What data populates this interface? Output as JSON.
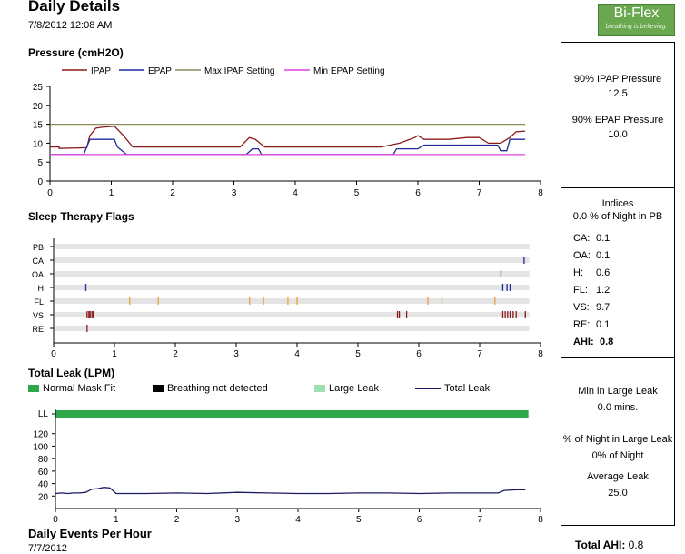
{
  "header": {
    "title": "Daily Details",
    "datetime": "7/8/2012 12:08 AM",
    "logo_text": "Bi-Flex",
    "logo_tagline": "breathing is believing."
  },
  "footer": {
    "title": "Daily Events Per Hour",
    "date": "7/7/2012",
    "total_ahi_label": "Total AHI:",
    "total_ahi_value": "0.8"
  },
  "pressure_stats": {
    "ipap_label": "90% IPAP Pressure",
    "ipap_value": "12.5",
    "epap_label": "90% EPAP Pressure",
    "epap_value": "10.0"
  },
  "indices": {
    "title": "Indices",
    "pb_line": "0.0 % of Night in PB",
    "rows": [
      {
        "label": "CA:",
        "value": "0.1"
      },
      {
        "label": "OA:",
        "value": "0.1"
      },
      {
        "label": "H:",
        "value": "0.6"
      },
      {
        "label": "FL:",
        "value": "1.2"
      },
      {
        "label": "VS:",
        "value": "9.7"
      },
      {
        "label": "RE:",
        "value": "0.1"
      }
    ],
    "ahi_label": "AHI:",
    "ahi_value": "0.8"
  },
  "leak_stats": {
    "min_label": "Min in Large Leak",
    "min_value": "0.0 mins.",
    "pct_label": "% of Night in Large Leak",
    "pct_value": "0% of Night",
    "avg_label": "Average Leak",
    "avg_value": "25.0"
  },
  "chart_data": [
    {
      "type": "line",
      "title": "Pressure (cmH2O)",
      "xlim": [
        0,
        8
      ],
      "ylim": [
        0,
        25
      ],
      "xticks": [
        0,
        1,
        2,
        3,
        4,
        5,
        6,
        7,
        8
      ],
      "yticks": [
        0,
        5,
        10,
        15,
        20,
        25
      ],
      "legend_placement": "top",
      "series": [
        {
          "name": "IPAP",
          "color": "#8b1a1a",
          "x": [
            0,
            0.15,
            0.15,
            0.6,
            0.65,
            0.75,
            0.85,
            1.05,
            1.2,
            1.35,
            1.6,
            2.0,
            2.4,
            2.8,
            3.1,
            3.25,
            3.35,
            3.5,
            3.8,
            4.2,
            4.6,
            5.0,
            5.4,
            5.7,
            5.95,
            6.0,
            6.1,
            6.3,
            6.5,
            6.8,
            7.0,
            7.15,
            7.35,
            7.5,
            7.6,
            7.75
          ],
          "values": [
            9,
            9,
            8.6,
            8.8,
            12,
            14,
            14.2,
            14.5,
            12,
            9,
            9,
            9,
            9,
            9,
            9,
            11.5,
            11,
            9,
            9,
            9,
            9,
            9,
            9,
            10,
            11.5,
            12,
            11,
            11,
            11,
            11.5,
            11.5,
            10,
            10,
            11.5,
            13,
            13.2
          ]
        },
        {
          "name": "EPAP",
          "color": "#1f2b9c",
          "x": [
            0,
            0.55,
            0.6,
            0.65,
            1.05,
            1.1,
            1.25,
            1.5,
            2,
            2.5,
            3.2,
            3.3,
            3.4,
            3.45,
            3.7,
            4,
            5,
            5.6,
            5.65,
            6,
            6.1,
            6.5,
            7,
            7.3,
            7.35,
            7.45,
            7.5,
            7.75
          ],
          "values": [
            7,
            7,
            9,
            11,
            11,
            9,
            7,
            7,
            7,
            7,
            7,
            8.5,
            8.5,
            7,
            7,
            7,
            7,
            7,
            8.5,
            8.5,
            9.5,
            9.5,
            9.5,
            9.5,
            8,
            8,
            11,
            11
          ]
        },
        {
          "name": "Max IPAP Setting",
          "color": "#8b8b5c",
          "x": [
            0,
            7.75
          ],
          "values": [
            15,
            15
          ]
        },
        {
          "name": "Min EPAP Setting",
          "color": "#e040e0",
          "x": [
            0,
            7.75
          ],
          "values": [
            7,
            7
          ]
        }
      ]
    },
    {
      "type": "scatter",
      "title": "Sleep Therapy Flags",
      "xlim": [
        0,
        8
      ],
      "xticks": [
        0,
        1,
        2,
        3,
        4,
        5,
        6,
        7,
        8
      ],
      "categories": [
        "PB",
        "CA",
        "OA",
        "H",
        "FL",
        "VS",
        "RE"
      ],
      "series": [
        {
          "name": "PB",
          "color": "#000000",
          "x": []
        },
        {
          "name": "CA",
          "color": "#1f2b9c",
          "x": [
            7.73
          ]
        },
        {
          "name": "OA",
          "color": "#1f2b9c",
          "x": [
            7.35
          ]
        },
        {
          "name": "H",
          "color": "#1f2b9c",
          "x": [
            0.53,
            7.38,
            7.45,
            7.5
          ]
        },
        {
          "name": "FL",
          "color": "#f0a030",
          "x": [
            1.25,
            1.72,
            3.22,
            3.45,
            3.85,
            4.0,
            6.15,
            6.38,
            7.25
          ]
        },
        {
          "name": "VS",
          "color": "#8b1a1a",
          "x": [
            0.55,
            0.58,
            0.6,
            0.63,
            0.65,
            5.65,
            5.68,
            5.8,
            7.38,
            7.42,
            7.46,
            7.5,
            7.55,
            7.6,
            7.75
          ]
        },
        {
          "name": "RE",
          "color": "#8b1a1a",
          "x": [
            0.55
          ]
        }
      ]
    },
    {
      "type": "line",
      "title": "Total Leak (LPM)",
      "xlim": [
        0,
        8
      ],
      "ylim": [
        0,
        140
      ],
      "xticks": [
        0,
        1,
        2,
        3,
        4,
        5,
        6,
        7,
        8
      ],
      "yticks": [
        20,
        40,
        60,
        80,
        100,
        120
      ],
      "top_label": "LL",
      "legend_entries": [
        "Normal Mask Fit",
        "Breathing not detected",
        "Large Leak",
        "Total Leak"
      ],
      "colors": {
        "normal_mask_fit": "#2ea84a",
        "breathing_not_detected": "#000000",
        "large_leak": "#9ee0b0",
        "total_leak": "#1a1a66"
      },
      "normal_mask_fit_range": [
        0,
        7.8
      ],
      "series": [
        {
          "name": "Total Leak",
          "color": "#1a1a66",
          "x": [
            0,
            0.1,
            0.2,
            0.3,
            0.4,
            0.5,
            0.6,
            0.7,
            0.8,
            0.9,
            1.0,
            1.2,
            1.5,
            2.0,
            2.5,
            3.0,
            3.5,
            4.0,
            4.5,
            5.0,
            5.5,
            6.0,
            6.5,
            7.0,
            7.3,
            7.4,
            7.6,
            7.75
          ],
          "values": [
            24,
            25,
            24,
            25,
            25,
            26,
            31,
            32,
            34,
            33,
            24,
            24,
            24,
            25,
            24,
            26,
            25,
            24,
            24,
            25,
            25,
            24,
            25,
            25,
            25,
            29,
            30,
            30
          ]
        }
      ]
    }
  ]
}
